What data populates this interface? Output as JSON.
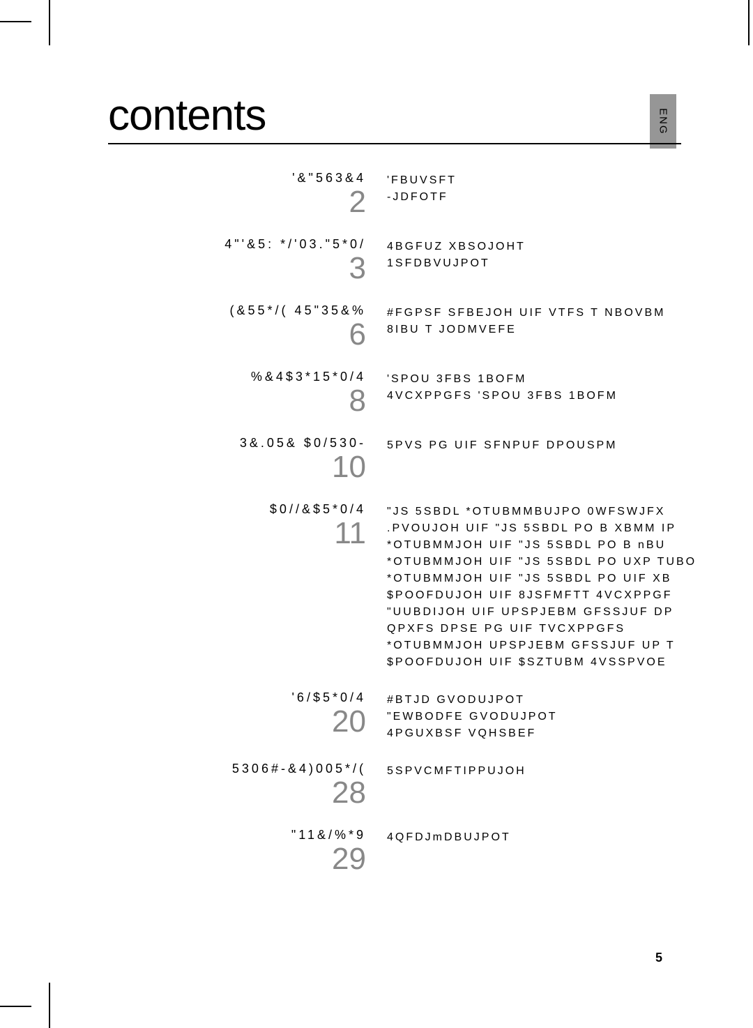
{
  "lang_tab": "ENG",
  "page_title": "contents",
  "page_number": "5",
  "colors": {
    "page_number_color": "#888888",
    "tab_bg": "#969696",
    "text": "#000000",
    "rule": "#000000"
  },
  "sections": [
    {
      "title": "'&\"563&4",
      "page": "2",
      "items": [
        "'FBUVSFT",
        "-JDFOTF"
      ]
    },
    {
      "title": "4\"'&5: */'03.\"5*0/",
      "page": "3",
      "items": [
        "4BGFUZ XBSOJOHT",
        "1SFDBVUJPOT"
      ]
    },
    {
      "title": "(&55*/( 45\"35&%",
      "page": "6",
      "items": [
        "#FGPSF SFBEJOH UIF VTFS T NBOVBM",
        "8IBU T JODMVEFE"
      ]
    },
    {
      "title": "%&4$3*15*0/4",
      "page": "8",
      "items": [
        "'SPOU 3FBS 1BOFM",
        "4VCXPPGFS 'SPOU 3FBS 1BOFM"
      ]
    },
    {
      "title": "3&.05& $0/530-",
      "page": "10",
      "items": [
        "5PVS PG UIF SFNPUF DPOUSPM"
      ]
    },
    {
      "title": "$0//&$5*0/4",
      "page": "11",
      "items": [
        "\"JS 5SBDL *OTUBMMBUJPO 0WFSWJFX",
        ".PVOUJOH UIF \"JS 5SBDL PO B XBMM  IP",
        "*OTUBMMJOH UIF \"JS 5SBDL PO B nBU",
        "*OTUBMMJOH UIF \"JS 5SBDL PO UXP TUBO",
        "*OTUBMMJOH UIF \"JS 5SBDL PO UIF XB",
        "$POOFDUJOH UIF 8JSFMFTT 4VCXPPGF",
        "\"UUBDIJOH UIF UPSPJEBM GFSSJUF DP",
        "QPXFS DPSE PG UIF TVCXPPGFS",
        "*OTUBMMJOH UPSPJEBM GFSSJUF UP T",
        "$POOFDUJOH UIF $SZTUBM 4VSSPVOE"
      ]
    },
    {
      "title": "'6/$5*0/4",
      "page": "20",
      "items": [
        "#BTJD GVODUJPOT",
        "\"EWBODFE GVODUJPOT",
        "4PGUXBSF VQHSBEF"
      ]
    },
    {
      "title": "5306#-&4)005*/(",
      "page": "28",
      "items": [
        "5SPVCMFTIPPUJOH"
      ]
    },
    {
      "title": "\"11&/%*9",
      "page": "29",
      "items": [
        "4QFDJmDBUJPOT"
      ]
    }
  ]
}
